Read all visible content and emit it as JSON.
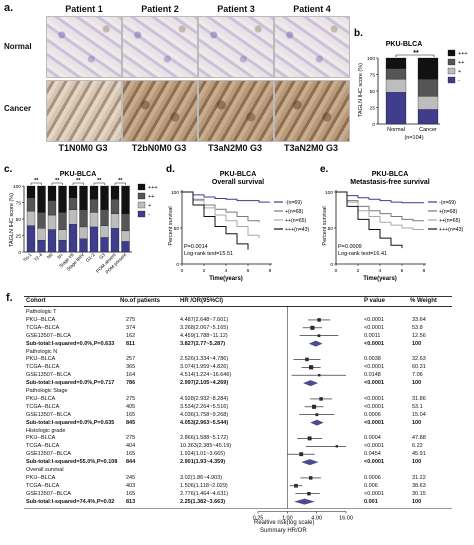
{
  "panel_a": {
    "letter": "a.",
    "columns": [
      "Patient 1",
      "Patient 2",
      "Patient 3",
      "Patient 4"
    ],
    "rows": [
      "Normal",
      "Cancer"
    ],
    "stages": [
      "T1N0M0 G3",
      "T2bN0M0 G3",
      "T3aN2M0 G3",
      "T3aN2M0 G3"
    ]
  },
  "panel_b": {
    "letter": "b.",
    "title": "PKU-BLCA",
    "ylabel": "TAGLN IHC score (%)",
    "xlabels": [
      "Normal",
      "Cancer"
    ],
    "note": "(n=104)",
    "significance": "**",
    "legend": [
      "+++",
      "++",
      "+",
      "-"
    ]
  },
  "panel_c": {
    "letter": "c.",
    "title": "PKU-BLCA",
    "ylabel": "TAGLN IHC score (%)",
    "xlabels": [
      "Tis-1",
      "T2-4",
      "N0",
      "N+",
      "Stage I/II",
      "Stage III/IV",
      "G1-2",
      "G3",
      "POM absent",
      "POM present"
    ],
    "significance": [
      "**",
      "**",
      "**",
      "**",
      "**"
    ],
    "legend": [
      "+++",
      "++",
      "+",
      "-"
    ]
  },
  "panel_d": {
    "letter": "d.",
    "title1": "PKU-BLCA",
    "title2": "Overall survival",
    "ylabel": "Percent survival",
    "xlabel": "Time(years)",
    "p": "P=0.0014",
    "logrank": "Log-rank test=15.51",
    "legend": [
      "-(n=69)",
      "+(n=68)",
      "++(n=65)",
      "+++(n=43)"
    ]
  },
  "panel_e": {
    "letter": "e.",
    "title1": "PKU-BLCA",
    "title2": "Metastasis-free survival",
    "ylabel": "Percent survival",
    "xlabel": "Time(years)",
    "p": "P=0.0009",
    "logrank": "Log-rank test=16.41",
    "legend": [
      "-(n=69)",
      "+(n=68)",
      "++(n=65)",
      "+++(n=43)"
    ]
  },
  "panel_f": {
    "letter": "f.",
    "headers": {
      "cohort": "Cohort",
      "n": "No.of patients",
      "hr": "HR /OR(95%CI)",
      "p": "P value",
      "w": "% Weight"
    },
    "rows": [
      {
        "kind": "group",
        "cohort": "Pathologic T"
      },
      {
        "kind": "study",
        "cohort": "PKU--BLCA",
        "n": "275",
        "hr": "4.487(2.648~7.601)",
        "p": "<0.0001",
        "w": "33.64"
      },
      {
        "kind": "study",
        "cohort": "TCGA--BLCA",
        "n": "374",
        "hr": "3.268(2.067~5.165)",
        "p": "<0.0001",
        "w": "53.8"
      },
      {
        "kind": "study",
        "cohort": "GSE13507--BLCA",
        "n": "162",
        "hr": "4.459(1.788~11.12)",
        "p": "0.0011",
        "w": "12.56"
      },
      {
        "kind": "subtotal",
        "cohort": "Sub-total:I-squared=0.0%,P=0.633",
        "n": "811",
        "hr": "3.827(2.77~5.287)",
        "p": "<0.0001",
        "w": "100"
      },
      {
        "kind": "group",
        "cohort": "Pathologic N"
      },
      {
        "kind": "study",
        "cohort": "PKU--BLCA",
        "n": "257",
        "hr": "2.526(1.334~4.786)",
        "p": "0.0038",
        "w": "32.63"
      },
      {
        "kind": "study",
        "cohort": "TCGA--BLCA",
        "n": "365",
        "hr": "3.074(1.959~4.826)",
        "p": "<0.0001",
        "w": "60.31"
      },
      {
        "kind": "study",
        "cohort": "GSE13507--BLCA",
        "n": "164",
        "hr": "4.514(1.224~16.646)",
        "p": "0.0148",
        "w": "7.06"
      },
      {
        "kind": "subtotal",
        "cohort": "Sub-total:I-squared=0.0%,P=0.717",
        "n": "786",
        "hr": "2.997(2.105~4.269)",
        "p": "<0.0001",
        "w": "100"
      },
      {
        "kind": "group",
        "cohort": "Pathologic Stage"
      },
      {
        "kind": "study",
        "cohort": "PKU--BLCA",
        "n": "275",
        "hr": "4.928(2.932~8.284)",
        "p": "<0.0001",
        "w": "31.86"
      },
      {
        "kind": "study",
        "cohort": "TCGA--BLCA",
        "n": "405",
        "hr": "3.534(2.264~5.516)",
        "p": "<0.0001",
        "w": "53.1"
      },
      {
        "kind": "study",
        "cohort": "GSE13507--BLCA",
        "n": "165",
        "hr": "4.036(1.758~9.268)",
        "p": "0.0006",
        "w": "15.04"
      },
      {
        "kind": "subtotal",
        "cohort": "Sub-total:I-squared=0.0%,P=0.635",
        "n": "845",
        "hr": "4.053(2.963~5.544)",
        "p": "<0.0001",
        "w": "100"
      },
      {
        "kind": "group",
        "cohort": "Histologic grade"
      },
      {
        "kind": "study",
        "cohort": "PKU--BLCA",
        "n": "275",
        "hr": "2.866(1.588~5.172)",
        "p": "0.0004",
        "w": "47.88"
      },
      {
        "kind": "study",
        "cohort": "TCGA--BLCA",
        "n": "404",
        "hr": "10.363(2.385~45.19)",
        "p": "<0.0001",
        "w": "6.22"
      },
      {
        "kind": "study",
        "cohort": "GSE13507--BLCA",
        "n": "165",
        "hr": "1.924(1.01~3.665)",
        "p": "0.0454",
        "w": "45.91"
      },
      {
        "kind": "subtotal",
        "cohort": "Sub-total:I-squared=55.0%,P=0.108",
        "n": "844",
        "hr": "2.901(1.93~4.359)",
        "p": "<0.0001",
        "w": "100"
      },
      {
        "kind": "group",
        "cohort": "Overall survival"
      },
      {
        "kind": "study",
        "cohort": "PKU--BLCA",
        "n": "245",
        "hr": "3.02(1.86~4.903)",
        "p": "0.0006",
        "w": "31.22"
      },
      {
        "kind": "study",
        "cohort": "TCGA--BLCA",
        "n": "403",
        "hr": "1.506(1.118~2.029)",
        "p": "0.006",
        "w": "38.63"
      },
      {
        "kind": "study",
        "cohort": "GSE13507--BLCA",
        "n": "165",
        "hr": "2.776(1.464~4.631)",
        "p": "<0.0001",
        "w": "30.15"
      },
      {
        "kind": "subtotal",
        "cohort": "Sub-total:I-squared=74.4%,P=0.02",
        "n": "813",
        "hr": "2.25(1.382~3.663)",
        "p": "0.001",
        "w": "100"
      }
    ],
    "axis_ticks": [
      "0.25",
      "1.00",
      "4.00",
      "16.00"
    ],
    "axis_label1": "Realtive risk(log scale)",
    "axis_label2": "Summary HR/OR"
  },
  "colors": {
    "black": "#111111",
    "dark": "#555555",
    "light": "#bdbdbd",
    "navy": "#3f3c8c",
    "forest_box": "#2b2b2b",
    "diamond": "#4b4b8f"
  },
  "chart_data": [
    {
      "type": "bar",
      "panel": "b",
      "title": "PKU-BLCA",
      "ylabel": "TAGLN IHC score (%)",
      "categories": [
        "Normal",
        "Cancer"
      ],
      "stacked": true,
      "ylim": [
        0,
        100
      ],
      "series": [
        {
          "name": "-",
          "values": [
            48,
            22
          ]
        },
        {
          "name": "+",
          "values": [
            20,
            20
          ]
        },
        {
          "name": "++",
          "values": [
            16,
            26
          ]
        },
        {
          "name": "+++",
          "values": [
            16,
            32
          ]
        }
      ]
    },
    {
      "type": "bar",
      "panel": "c",
      "title": "PKU-BLCA",
      "ylabel": "TAGLN IHC score (%)",
      "categories": [
        "Tis-1",
        "T2-4",
        "N0",
        "N+",
        "Stage I/II",
        "Stage III/IV",
        "G1-2",
        "G3",
        "POM absent",
        "POM present"
      ],
      "stacked": true,
      "ylim": [
        0,
        100
      ],
      "series": [
        {
          "name": "-",
          "values": [
            40,
            18,
            34,
            18,
            42,
            20,
            38,
            22,
            36,
            16
          ]
        },
        {
          "name": "+",
          "values": [
            22,
            18,
            22,
            16,
            22,
            18,
            22,
            18,
            22,
            16
          ]
        },
        {
          "name": "++",
          "values": [
            20,
            24,
            22,
            26,
            18,
            26,
            20,
            24,
            22,
            26
          ]
        },
        {
          "name": "+++",
          "values": [
            18,
            40,
            22,
            40,
            18,
            36,
            20,
            36,
            20,
            42
          ]
        }
      ]
    },
    {
      "type": "line",
      "panel": "d",
      "title": "PKU-BLCA Overall survival",
      "xlabel": "Time(years)",
      "ylabel": "Percent survival",
      "xlim": [
        0,
        8
      ],
      "ylim": [
        0,
        100
      ],
      "series": [
        {
          "name": "-(n=69)",
          "x": [
            0,
            1,
            2,
            3,
            4,
            5,
            6,
            7,
            8
          ],
          "y": [
            100,
            96,
            93,
            91,
            90,
            88,
            88,
            86,
            86
          ]
        },
        {
          "name": "+(n=68)",
          "x": [
            0,
            1,
            2,
            3,
            4,
            5,
            6,
            7
          ],
          "y": [
            100,
            90,
            82,
            76,
            72,
            66,
            60,
            58
          ]
        },
        {
          "name": "++(n=65)",
          "x": [
            0,
            1,
            2,
            3,
            4,
            5,
            6,
            7
          ],
          "y": [
            100,
            88,
            78,
            68,
            60,
            52,
            40,
            36
          ]
        },
        {
          "name": "+++(n=43)",
          "x": [
            0,
            1,
            2,
            3,
            4,
            5,
            6
          ],
          "y": [
            100,
            82,
            66,
            52,
            42,
            28,
            20
          ]
        }
      ]
    },
    {
      "type": "line",
      "panel": "e",
      "title": "PKU-BLCA Metastasis-free survival",
      "xlabel": "Time(years)",
      "ylabel": "Percent survival",
      "xlim": [
        0,
        8
      ],
      "ylim": [
        0,
        100
      ],
      "series": [
        {
          "name": "-(n=69)",
          "x": [
            0,
            1,
            2,
            3,
            4,
            5,
            6,
            7,
            8
          ],
          "y": [
            100,
            95,
            92,
            90,
            88,
            86,
            85,
            85,
            85
          ]
        },
        {
          "name": "+(n=68)",
          "x": [
            0,
            1,
            2,
            3,
            4,
            5,
            6,
            7,
            8
          ],
          "y": [
            100,
            88,
            80,
            74,
            70,
            66,
            62,
            60,
            60
          ]
        },
        {
          "name": "++(n=65)",
          "x": [
            0,
            1,
            2,
            3,
            4,
            5,
            6,
            7,
            8
          ],
          "y": [
            100,
            86,
            74,
            66,
            58,
            54,
            50,
            48,
            48
          ]
        },
        {
          "name": "+++(n=43)",
          "x": [
            0,
            1,
            2,
            3,
            4,
            5,
            6
          ],
          "y": [
            100,
            80,
            62,
            48,
            36,
            26,
            22
          ]
        }
      ]
    }
  ]
}
